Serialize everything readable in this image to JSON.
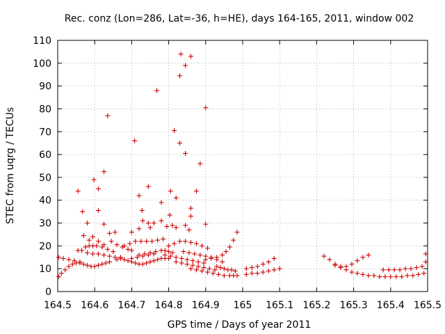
{
  "chart_data": {
    "type": "scatter",
    "title": "Rec. conz (Lon=286, Lat=-36, h=HE), days 164-165, 2011, window 002",
    "xlabel": "GPS time / Days of year 2011",
    "ylabel": "STEC from uqrg / TECUs",
    "xlim": [
      164.5,
      165.5
    ],
    "ylim": [
      0,
      110
    ],
    "xticks": [
      "164.5",
      "164.6",
      "164.7",
      "164.8",
      "164.9",
      "165",
      "165.1",
      "165.2",
      "165.3",
      "165.4",
      "165.5"
    ],
    "yticks": [
      "0",
      "10",
      "20",
      "30",
      "40",
      "50",
      "60",
      "70",
      "80",
      "90",
      "100",
      "110"
    ],
    "grid": true,
    "marker": "+",
    "color": "#cc0000",
    "series": [
      {
        "name": "STEC",
        "points": [
          [
            164.503,
            6.5
          ],
          [
            164.51,
            8
          ],
          [
            164.52,
            9.5
          ],
          [
            164.53,
            11
          ],
          [
            164.54,
            12
          ],
          [
            164.55,
            12.5
          ],
          [
            164.56,
            12.5
          ],
          [
            164.57,
            12
          ],
          [
            164.58,
            11.5
          ],
          [
            164.59,
            11
          ],
          [
            164.6,
            11
          ],
          [
            164.61,
            11.5
          ],
          [
            164.62,
            12
          ],
          [
            164.63,
            12.5
          ],
          [
            164.64,
            13
          ],
          [
            164.503,
            15
          ],
          [
            164.515,
            14.5
          ],
          [
            164.53,
            14
          ],
          [
            164.545,
            13.5
          ],
          [
            164.56,
            13
          ],
          [
            164.555,
            18
          ],
          [
            164.565,
            18
          ],
          [
            164.575,
            19.5
          ],
          [
            164.585,
            20
          ],
          [
            164.595,
            20
          ],
          [
            164.605,
            20
          ],
          [
            164.62,
            19.5
          ],
          [
            164.635,
            18.5
          ],
          [
            164.65,
            17.5
          ],
          [
            164.58,
            17
          ],
          [
            164.595,
            16.5
          ],
          [
            164.61,
            16.5
          ],
          [
            164.625,
            16
          ],
          [
            164.64,
            15.5
          ],
          [
            164.655,
            15
          ],
          [
            164.67,
            15
          ],
          [
            164.57,
            24.5
          ],
          [
            164.585,
            22.5
          ],
          [
            164.595,
            24
          ],
          [
            164.61,
            22
          ],
          [
            164.625,
            20.5
          ],
          [
            164.645,
            22
          ],
          [
            164.66,
            20.5
          ],
          [
            164.675,
            19.5
          ],
          [
            164.69,
            18.5
          ],
          [
            164.7,
            18
          ],
          [
            164.66,
            14
          ],
          [
            164.67,
            14.5
          ],
          [
            164.68,
            14
          ],
          [
            164.69,
            13.5
          ],
          [
            164.7,
            13
          ],
          [
            164.71,
            12.5
          ],
          [
            164.72,
            12
          ],
          [
            164.68,
            20
          ],
          [
            164.695,
            21
          ],
          [
            164.71,
            22
          ],
          [
            164.725,
            22
          ],
          [
            164.74,
            22
          ],
          [
            164.755,
            22
          ],
          [
            164.77,
            22.5
          ],
          [
            164.785,
            23
          ],
          [
            164.72,
            16
          ],
          [
            164.735,
            16.5
          ],
          [
            164.75,
            17
          ],
          [
            164.765,
            17.5
          ],
          [
            164.78,
            18
          ],
          [
            164.79,
            18
          ],
          [
            164.8,
            17.5
          ],
          [
            164.81,
            17
          ],
          [
            164.73,
            12
          ],
          [
            164.74,
            12.5
          ],
          [
            164.75,
            13
          ],
          [
            164.76,
            13.5
          ],
          [
            164.77,
            14
          ],
          [
            164.78,
            14.5
          ],
          [
            164.79,
            14.5
          ],
          [
            164.8,
            14.5
          ],
          [
            164.7,
            14.5
          ],
          [
            164.715,
            15
          ],
          [
            164.73,
            15.5
          ],
          [
            164.745,
            16
          ],
          [
            164.76,
            16.5
          ],
          [
            164.7,
            26
          ],
          [
            164.72,
            27.5
          ],
          [
            164.73,
            31
          ],
          [
            164.75,
            28
          ],
          [
            164.76,
            30
          ],
          [
            164.78,
            31
          ],
          [
            164.795,
            28.5
          ],
          [
            164.81,
            29
          ],
          [
            164.82,
            28
          ],
          [
            164.8,
            20
          ],
          [
            164.815,
            21
          ],
          [
            164.83,
            22
          ],
          [
            164.845,
            22
          ],
          [
            164.86,
            21.5
          ],
          [
            164.875,
            21
          ],
          [
            164.89,
            20
          ],
          [
            164.905,
            19
          ],
          [
            164.79,
            16
          ],
          [
            164.805,
            15.5
          ],
          [
            164.82,
            15
          ],
          [
            164.835,
            14.5
          ],
          [
            164.85,
            14
          ],
          [
            164.865,
            13.5
          ],
          [
            164.88,
            13
          ],
          [
            164.895,
            12.5
          ],
          [
            164.82,
            13
          ],
          [
            164.835,
            12.5
          ],
          [
            164.85,
            12
          ],
          [
            164.865,
            11.5
          ],
          [
            164.88,
            11
          ],
          [
            164.895,
            10.5
          ],
          [
            164.91,
            10
          ],
          [
            164.925,
            9.5
          ],
          [
            164.84,
            17.5
          ],
          [
            164.855,
            17
          ],
          [
            164.87,
            16.5
          ],
          [
            164.885,
            16
          ],
          [
            164.9,
            15.5
          ],
          [
            164.915,
            15
          ],
          [
            164.93,
            14
          ],
          [
            164.945,
            13
          ],
          [
            164.86,
            10
          ],
          [
            164.875,
            9.5
          ],
          [
            164.89,
            9
          ],
          [
            164.905,
            8.5
          ],
          [
            164.92,
            8
          ],
          [
            164.935,
            7.5
          ],
          [
            164.95,
            7
          ],
          [
            164.965,
            7
          ],
          [
            164.975,
            7
          ],
          [
            164.985,
            7
          ],
          [
            164.9,
            14
          ],
          [
            164.915,
            14.5
          ],
          [
            164.93,
            15
          ],
          [
            164.945,
            16
          ],
          [
            164.955,
            17.5
          ],
          [
            164.965,
            19.5
          ],
          [
            164.975,
            22.5
          ],
          [
            164.985,
            26
          ],
          [
            164.93,
            11
          ],
          [
            164.94,
            10.5
          ],
          [
            164.95,
            10
          ],
          [
            164.96,
            9.5
          ],
          [
            164.97,
            9.5
          ],
          [
            164.98,
            9
          ],
          [
            164.555,
            44
          ],
          [
            164.567,
            35
          ],
          [
            164.58,
            30
          ],
          [
            164.598,
            49
          ],
          [
            164.61,
            45
          ],
          [
            164.61,
            35.5
          ],
          [
            164.625,
            52.5
          ],
          [
            164.635,
            77
          ],
          [
            164.64,
            25.5
          ],
          [
            164.655,
            26
          ],
          [
            164.625,
            29.5
          ],
          [
            164.708,
            66
          ],
          [
            164.72,
            42
          ],
          [
            164.728,
            35.5
          ],
          [
            164.745,
            46
          ],
          [
            164.745,
            30
          ],
          [
            164.768,
            88
          ],
          [
            164.78,
            39
          ],
          [
            164.805,
            44
          ],
          [
            164.815,
            70.5
          ],
          [
            164.82,
            41
          ],
          [
            164.83,
            94.5
          ],
          [
            164.833,
            104
          ],
          [
            164.83,
            65
          ],
          [
            164.845,
            99
          ],
          [
            164.845,
            60.5
          ],
          [
            164.86,
            103
          ],
          [
            164.86,
            36.5
          ],
          [
            164.86,
            33
          ],
          [
            164.875,
            44
          ],
          [
            164.885,
            56
          ],
          [
            164.9,
            80.5
          ],
          [
            164.803,
            33.5
          ],
          [
            164.845,
            29
          ],
          [
            164.9,
            29.5
          ],
          [
            164.855,
            27
          ],
          [
            165.01,
            10
          ],
          [
            165.025,
            10.5
          ],
          [
            165.04,
            11
          ],
          [
            165.055,
            12
          ],
          [
            165.07,
            13
          ],
          [
            165.085,
            14.5
          ],
          [
            165.01,
            7.5
          ],
          [
            165.025,
            8
          ],
          [
            165.04,
            8
          ],
          [
            165.055,
            8.5
          ],
          [
            165.07,
            9
          ],
          [
            165.085,
            9.5
          ],
          [
            165.1,
            10
          ],
          [
            165.22,
            15.5
          ],
          [
            165.235,
            14
          ],
          [
            165.25,
            12
          ],
          [
            165.265,
            11
          ],
          [
            165.28,
            11
          ],
          [
            165.295,
            12
          ],
          [
            165.31,
            13.5
          ],
          [
            165.325,
            15
          ],
          [
            165.34,
            16
          ],
          [
            165.25,
            11.5
          ],
          [
            165.265,
            10.5
          ],
          [
            165.28,
            9.5
          ],
          [
            165.295,
            8.5
          ],
          [
            165.31,
            8
          ],
          [
            165.325,
            7.5
          ],
          [
            165.34,
            7
          ],
          [
            165.355,
            7
          ],
          [
            165.37,
            6.5
          ],
          [
            165.385,
            6.5
          ],
          [
            165.4,
            6.5
          ],
          [
            165.415,
            6.5
          ],
          [
            165.43,
            6.5
          ],
          [
            165.445,
            7
          ],
          [
            165.46,
            7
          ],
          [
            165.475,
            7.5
          ],
          [
            165.49,
            8
          ],
          [
            165.38,
            9.5
          ],
          [
            165.395,
            9.5
          ],
          [
            165.41,
            9.5
          ],
          [
            165.425,
            9.5
          ],
          [
            165.44,
            10
          ],
          [
            165.455,
            10
          ],
          [
            165.47,
            10.5
          ],
          [
            165.485,
            11
          ],
          [
            165.495,
            13
          ],
          [
            165.495,
            16.5
          ]
        ]
      }
    ]
  }
}
